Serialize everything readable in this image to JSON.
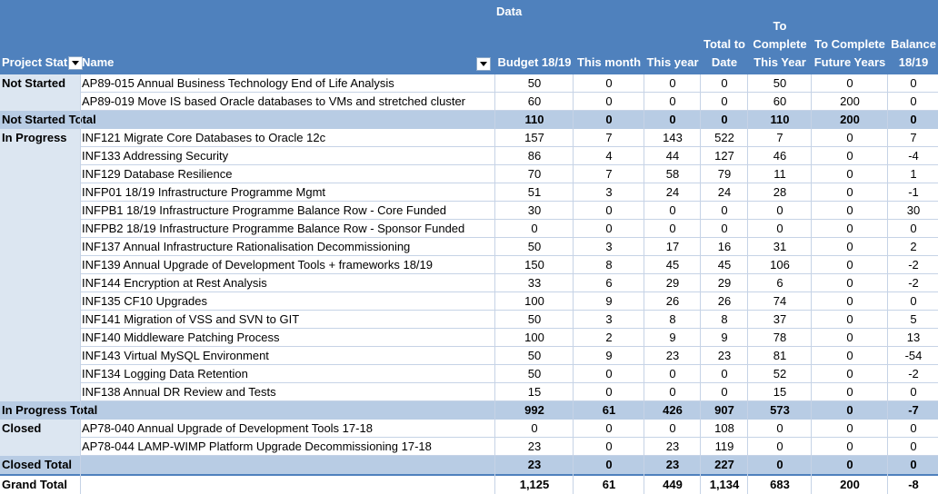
{
  "header": {
    "data_label": "Data",
    "project_status": "Project Stat",
    "name": "Name",
    "budget": "Budget 18/19",
    "this_month": "This month",
    "this_year": "This year",
    "total_to_date_1": "Total to",
    "total_to_date_2": "Date",
    "to_complete_1": "To",
    "to_complete_2": "Complete",
    "to_complete_3": "This Year",
    "future_1": "To Complete",
    "future_2": "Future Years",
    "balance_1": "Balance",
    "balance_2": "18/19"
  },
  "rows": [
    {
      "label": "Not Started",
      "name": "AP89-015 Annual Business Technology End of Life Analysis",
      "v": [
        "50",
        "0",
        "0",
        "0",
        "50",
        "0",
        "0"
      ]
    },
    {
      "label": "",
      "name": "AP89-019 Move IS based Oracle databases to VMs and stretched cluster",
      "v": [
        "60",
        "0",
        "0",
        "0",
        "60",
        "200",
        "0"
      ]
    },
    {
      "label": "Not Started Total",
      "name": "",
      "v": [
        "110",
        "0",
        "0",
        "0",
        "110",
        "200",
        "0"
      ],
      "total": true
    },
    {
      "label": "In Progress",
      "name": "INF121 Migrate Core Databases to Oracle 12c",
      "v": [
        "157",
        "7",
        "143",
        "522",
        "7",
        "0",
        "7"
      ]
    },
    {
      "label": "",
      "name": "INF133 Addressing Security",
      "v": [
        "86",
        "4",
        "44",
        "127",
        "46",
        "0",
        "-4"
      ]
    },
    {
      "label": "",
      "name": "INF129 Database Resilience",
      "v": [
        "70",
        "7",
        "58",
        "79",
        "11",
        "0",
        "1"
      ]
    },
    {
      "label": "",
      "name": "INFP01 18/19  Infrastructure Programme Mgmt",
      "v": [
        "51",
        "3",
        "24",
        "24",
        "28",
        "0",
        "-1"
      ]
    },
    {
      "label": "",
      "name": "INFPB1 18/19 Infrastructure Programme Balance Row - Core Funded",
      "v": [
        "30",
        "0",
        "0",
        "0",
        "0",
        "0",
        "30"
      ]
    },
    {
      "label": "",
      "name": "INFPB2 18/19 Infrastructure Programme Balance Row - Sponsor Funded",
      "v": [
        "0",
        "0",
        "0",
        "0",
        "0",
        "0",
        "0"
      ]
    },
    {
      "label": "",
      "name": "INF137  Annual Infrastructure Rationalisation Decommissioning",
      "v": [
        "50",
        "3",
        "17",
        "16",
        "31",
        "0",
        "2"
      ]
    },
    {
      "label": "",
      "name": "INF139 Annual Upgrade of Development Tools + frameworks 18/19",
      "v": [
        "150",
        "8",
        "45",
        "45",
        "106",
        "0",
        "-2"
      ]
    },
    {
      "label": "",
      "name": "INF144 Encryption at Rest Analysis",
      "v": [
        "33",
        "6",
        "29",
        "29",
        "6",
        "0",
        "-2"
      ]
    },
    {
      "label": "",
      "name": "INF135 CF10 Upgrades",
      "v": [
        "100",
        "9",
        "26",
        "26",
        "74",
        "0",
        "0"
      ]
    },
    {
      "label": "",
      "name": "INF141 Migration of VSS and SVN to GIT",
      "v": [
        "50",
        "3",
        "8",
        "8",
        "37",
        "0",
        "5"
      ]
    },
    {
      "label": "",
      "name": "INF140 Middleware Patching Process",
      "v": [
        "100",
        "2",
        "9",
        "9",
        "78",
        "0",
        "13"
      ]
    },
    {
      "label": "",
      "name": "INF143 Virtual MySQL Environment",
      "v": [
        "50",
        "9",
        "23",
        "23",
        "81",
        "0",
        "-54"
      ]
    },
    {
      "label": "",
      "name": "INF134 Logging Data Retention",
      "v": [
        "50",
        "0",
        "0",
        "0",
        "52",
        "0",
        "-2"
      ]
    },
    {
      "label": "",
      "name": "INF138 Annual DR Review and Tests",
      "v": [
        "15",
        "0",
        "0",
        "0",
        "15",
        "0",
        "0"
      ]
    },
    {
      "label": "In Progress Total",
      "name": "",
      "v": [
        "992",
        "61",
        "426",
        "907",
        "573",
        "0",
        "-7"
      ],
      "total": true
    },
    {
      "label": "Closed",
      "name": "AP78-040 Annual Upgrade of Development Tools 17-18",
      "v": [
        "0",
        "0",
        "0",
        "108",
        "0",
        "0",
        "0"
      ]
    },
    {
      "label": "",
      "name": "AP78-044 LAMP-WIMP Platform Upgrade Decommissioning 17-18",
      "v": [
        "23",
        "0",
        "23",
        "119",
        "0",
        "0",
        "0"
      ]
    },
    {
      "label": "Closed Total",
      "name": "",
      "v": [
        "23",
        "0",
        "23",
        "227",
        "0",
        "0",
        "0"
      ],
      "total": true
    },
    {
      "label": "Grand Total",
      "name": "",
      "v": [
        "1,125",
        "61",
        "449",
        "1,134",
        "683",
        "200",
        "-8"
      ],
      "grand": true
    }
  ],
  "colors": {
    "header": "#4f81bd",
    "total_row": "#b8cce4",
    "label_bg": "#dce6f1"
  }
}
